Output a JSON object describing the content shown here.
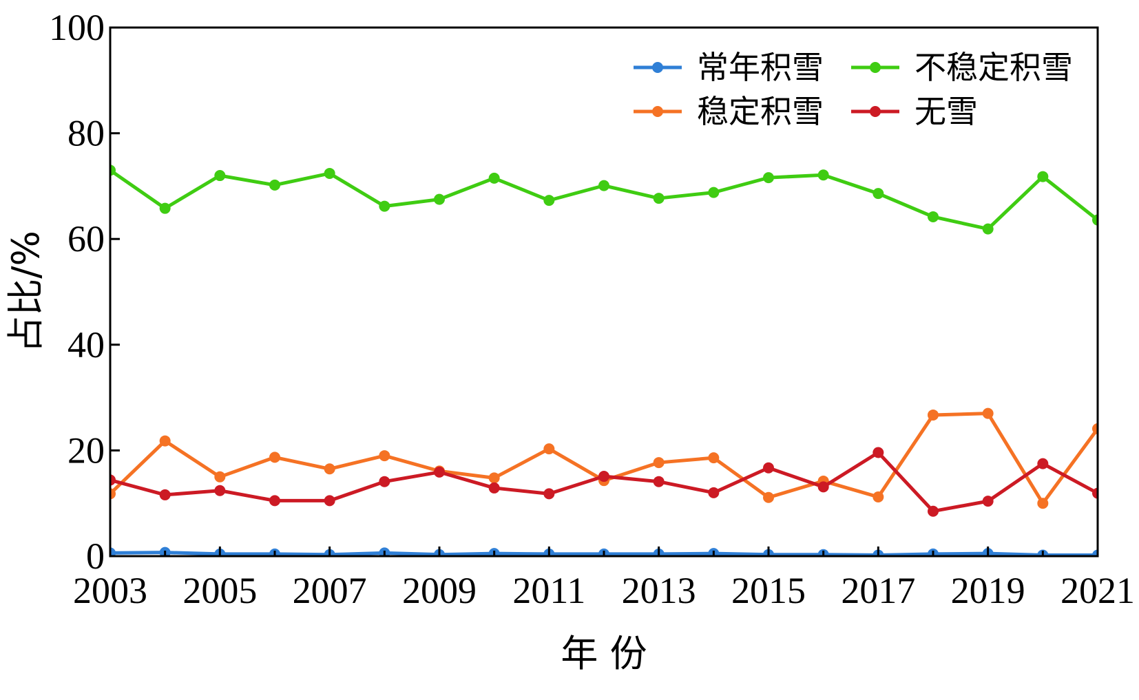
{
  "chart_data": {
    "type": "line",
    "xlabel": "年 份",
    "ylabel": "占比/%",
    "x": [
      2003,
      2004,
      2005,
      2006,
      2007,
      2008,
      2009,
      2010,
      2011,
      2012,
      2013,
      2014,
      2015,
      2016,
      2017,
      2018,
      2019,
      2020,
      2021
    ],
    "xticks": [
      "2003",
      "2005",
      "2007",
      "2009",
      "2011",
      "2013",
      "2015",
      "2017",
      "2019",
      "2021"
    ],
    "yticks": [
      "0",
      "20",
      "40",
      "60",
      "80",
      "100"
    ],
    "xlim": [
      2003,
      2021
    ],
    "ylim": [
      0,
      100
    ],
    "grid": false,
    "legend_position": "top-right",
    "series": [
      {
        "name": "常年积雪",
        "color": "#2f7fd6",
        "values": [
          0.6,
          0.7,
          0.4,
          0.4,
          0.3,
          0.6,
          0.3,
          0.5,
          0.4,
          0.4,
          0.4,
          0.5,
          0.3,
          0.3,
          0.2,
          0.4,
          0.5,
          0.2,
          0.2
        ]
      },
      {
        "name": "不稳定积雪",
        "color": "#3fcc12",
        "values": [
          73.0,
          65.8,
          72.0,
          70.2,
          72.4,
          66.2,
          67.5,
          71.5,
          67.3,
          70.1,
          67.7,
          68.8,
          71.6,
          72.1,
          68.6,
          64.2,
          61.9,
          71.8,
          63.6
        ]
      },
      {
        "name": "稳定积雪",
        "color": "#f57224",
        "values": [
          11.8,
          21.8,
          15.0,
          18.7,
          16.5,
          19.0,
          16.1,
          14.8,
          20.3,
          14.3,
          17.7,
          18.6,
          11.1,
          14.2,
          11.2,
          26.7,
          27.0,
          10.0,
          24.1
        ]
      },
      {
        "name": "无雪",
        "color": "#cc1a24",
        "values": [
          14.4,
          11.6,
          12.4,
          10.5,
          10.5,
          14.1,
          15.9,
          12.9,
          11.8,
          15.1,
          14.1,
          12.0,
          16.7,
          13.1,
          19.6,
          8.5,
          10.4,
          17.5,
          11.9
        ]
      }
    ]
  }
}
